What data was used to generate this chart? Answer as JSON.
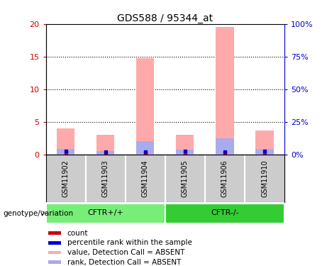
{
  "title": "GDS588 / 95344_at",
  "samples": [
    "GSM11902",
    "GSM11903",
    "GSM11904",
    "GSM11905",
    "GSM11906",
    "GSM11910"
  ],
  "pink_bar_values": [
    4.0,
    3.0,
    14.8,
    3.0,
    19.5,
    3.7
  ],
  "blue_bar_values": [
    0.8,
    0.5,
    2.0,
    0.7,
    2.5,
    0.8
  ],
  "red_dot_values": [
    0.12,
    0.1,
    0.12,
    0.1,
    0.12,
    0.1
  ],
  "blue_dot_values": [
    0.45,
    0.4,
    0.4,
    0.45,
    0.35,
    0.5
  ],
  "ylim_left": [
    0,
    20
  ],
  "ylim_right": [
    0,
    100
  ],
  "yticks_left": [
    0,
    5,
    10,
    15,
    20
  ],
  "yticks_right": [
    0,
    25,
    50,
    75,
    100
  ],
  "ytick_labels_left": [
    "0",
    "5",
    "10",
    "15",
    "20"
  ],
  "ytick_labels_right": [
    "0%",
    "25%",
    "50%",
    "75%",
    "100%"
  ],
  "pink_color": "#ffaaaa",
  "blue_bar_color": "#aaaaee",
  "red_color": "#cc0000",
  "blue_color": "#0000cc",
  "legend_items": [
    {
      "label": "count",
      "color": "#cc0000"
    },
    {
      "label": "percentile rank within the sample",
      "color": "#0000cc"
    },
    {
      "label": "value, Detection Call = ABSENT",
      "color": "#ffaaaa"
    },
    {
      "label": "rank, Detection Call = ABSENT",
      "color": "#aaaaee"
    }
  ],
  "genotype_label": "genotype/variation",
  "group1_label": "CFTR+/+",
  "group2_label": "CFTR-/-",
  "group1_color": "#77ee77",
  "group2_color": "#33cc33",
  "background_color": "#ffffff",
  "sample_bg_color": "#cccccc"
}
